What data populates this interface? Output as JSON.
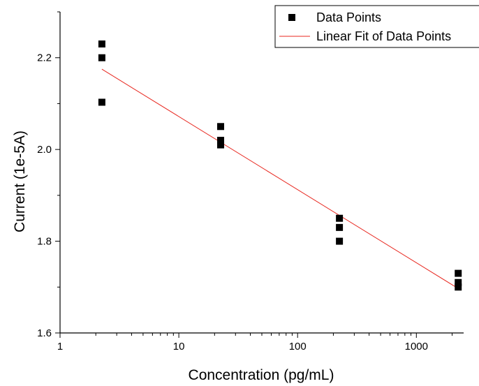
{
  "chart_data": {
    "type": "scatter",
    "title": "",
    "xlabel": "Concentration (pg/mL)",
    "ylabel": "Current (1e-5A)",
    "xscale": "log",
    "xlim": [
      1,
      2500
    ],
    "ylim": [
      1.6,
      2.3
    ],
    "xticks": [
      1,
      10,
      100,
      1000
    ],
    "xtick_labels": [
      "1",
      "10",
      "100",
      "1000"
    ],
    "yticks": [
      1.6,
      1.8,
      2.0,
      2.2
    ],
    "ytick_labels": [
      "1.6",
      "1.8",
      "2.0",
      "2.2"
    ],
    "grid": false,
    "legend_position": "top-right",
    "series": [
      {
        "name": "Data Points",
        "kind": "scatter",
        "marker": "square",
        "color": "#000000",
        "points": [
          [
            2.25,
            2.23
          ],
          [
            2.25,
            2.2
          ],
          [
            2.25,
            2.103
          ],
          [
            22.5,
            2.05
          ],
          [
            22.5,
            2.02
          ],
          [
            22.5,
            2.01
          ],
          [
            225,
            1.85
          ],
          [
            225,
            1.83
          ],
          [
            225,
            1.8
          ],
          [
            2250,
            1.73
          ],
          [
            2250,
            1.71
          ],
          [
            2250,
            1.7
          ]
        ]
      },
      {
        "name": "Linear Fit of Data Points",
        "kind": "line",
        "color": "#e8271f",
        "points": [
          [
            2.25,
            2.175
          ],
          [
            2250,
            1.697
          ]
        ]
      }
    ]
  }
}
